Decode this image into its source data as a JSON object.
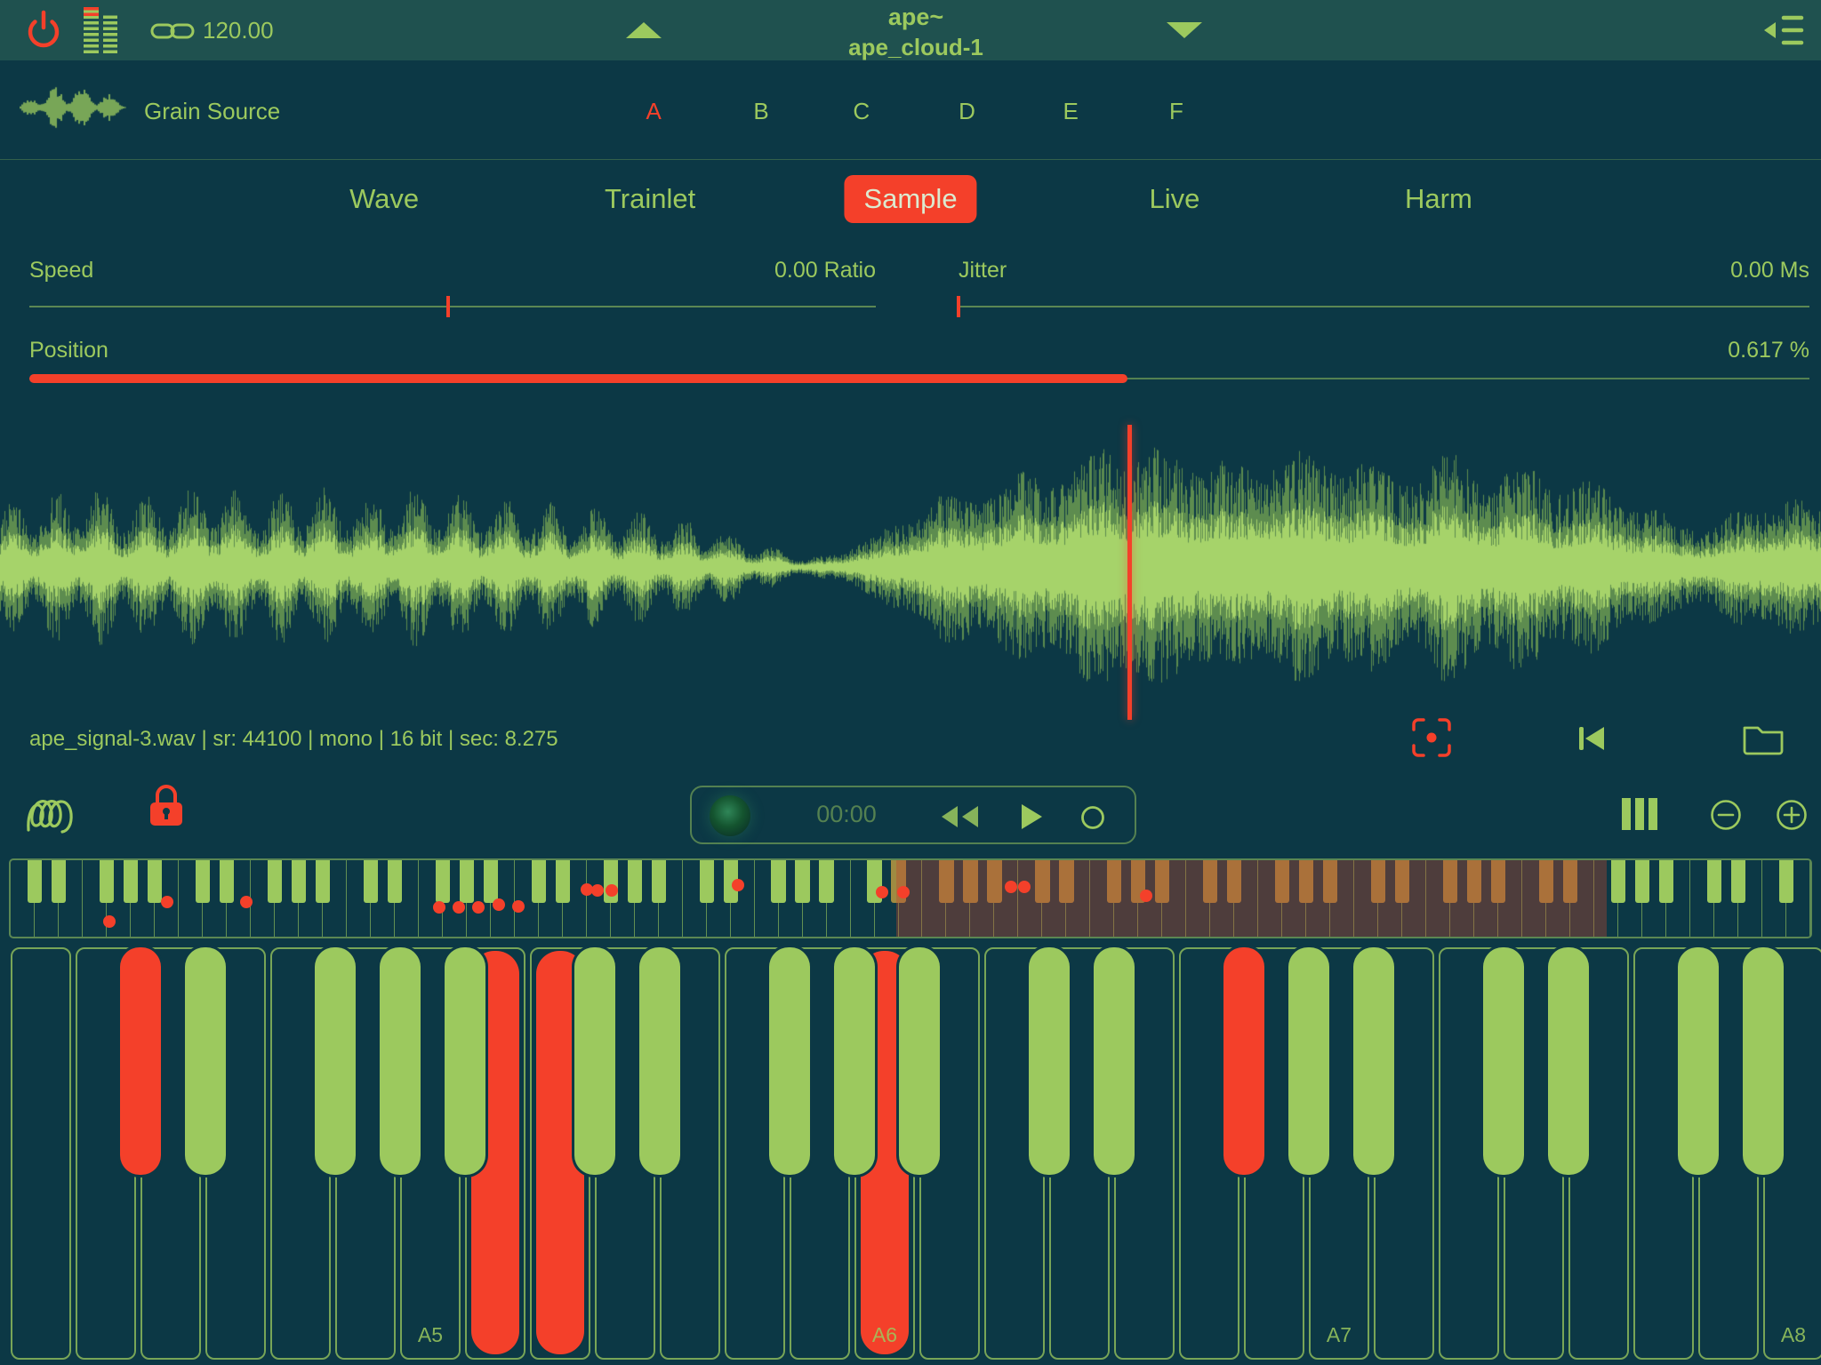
{
  "colors": {
    "bg": "#0c3845",
    "topbar_bg": "#1f514f",
    "green": "#9cc95e",
    "red": "#f4402a",
    "selection_overlay": "rgba(187,70,48,0.38)",
    "selection_black_key": "#a08b41",
    "tab_active_text": "#dcead0"
  },
  "topbar": {
    "tempo": "120.00",
    "title_line1": "ape~",
    "title_line2": "ape_cloud-1"
  },
  "grain_source": {
    "label": "Grain Source",
    "banks": [
      "A",
      "B",
      "C",
      "D",
      "E",
      "F"
    ],
    "active_bank": "A"
  },
  "tabs": {
    "items": [
      "Wave",
      "Trainlet",
      "Sample",
      "Live",
      "Harm"
    ],
    "active": "Sample"
  },
  "params": {
    "speed": {
      "label": "Speed",
      "value": "0.00 Ratio",
      "tick_pos": 0.495
    },
    "jitter": {
      "label": "Jitter",
      "value": "0.00 Ms",
      "tick_pos": 0
    },
    "position": {
      "label": "Position",
      "value": "0.617 %",
      "fill": 0.617
    }
  },
  "waveform": {
    "file_info": "ape_signal-3.wav | sr: 44100 | mono | 16 bit | sec: 8.275",
    "playhead": 0.62,
    "envelope": [
      [
        0,
        0.45
      ],
      [
        0.02,
        0.52
      ],
      [
        0.05,
        0.58
      ],
      [
        0.08,
        0.5
      ],
      [
        0.11,
        0.6
      ],
      [
        0.14,
        0.52
      ],
      [
        0.17,
        0.58
      ],
      [
        0.2,
        0.52
      ],
      [
        0.23,
        0.58
      ],
      [
        0.26,
        0.52
      ],
      [
        0.29,
        0.48
      ],
      [
        0.32,
        0.44
      ],
      [
        0.35,
        0.4
      ],
      [
        0.38,
        0.34
      ],
      [
        0.41,
        0.22
      ],
      [
        0.43,
        0.12
      ],
      [
        0.445,
        0.07
      ],
      [
        0.46,
        0.12
      ],
      [
        0.48,
        0.22
      ],
      [
        0.5,
        0.42
      ],
      [
        0.52,
        0.55
      ],
      [
        0.545,
        0.62
      ],
      [
        0.57,
        0.72
      ],
      [
        0.59,
        0.8
      ],
      [
        0.61,
        0.92
      ],
      [
        0.625,
        0.96
      ],
      [
        0.64,
        0.8
      ],
      [
        0.66,
        0.88
      ],
      [
        0.68,
        0.74
      ],
      [
        0.7,
        0.9
      ],
      [
        0.72,
        0.8
      ],
      [
        0.74,
        0.86
      ],
      [
        0.76,
        0.7
      ],
      [
        0.78,
        0.78
      ],
      [
        0.8,
        0.84
      ],
      [
        0.82,
        0.7
      ],
      [
        0.84,
        0.76
      ],
      [
        0.86,
        0.64
      ],
      [
        0.88,
        0.6
      ],
      [
        0.9,
        0.48
      ],
      [
        0.92,
        0.34
      ],
      [
        0.94,
        0.32
      ],
      [
        0.96,
        0.46
      ],
      [
        0.98,
        0.54
      ],
      [
        1,
        0.42
      ]
    ]
  },
  "transport": {
    "time": "00:00"
  },
  "mini_keyboard": {
    "white_keys": 75,
    "selection": [
      0.492,
      0.887
    ],
    "dots": [
      [
        0.055,
        0.8
      ],
      [
        0.087,
        0.55
      ],
      [
        0.131,
        0.55
      ],
      [
        0.238,
        0.62
      ],
      [
        0.249,
        0.62
      ],
      [
        0.26,
        0.62
      ],
      [
        0.271,
        0.58
      ],
      [
        0.282,
        0.6
      ],
      [
        0.32,
        0.38
      ],
      [
        0.326,
        0.4
      ],
      [
        0.334,
        0.4
      ],
      [
        0.404,
        0.33
      ],
      [
        0.484,
        0.42
      ],
      [
        0.496,
        0.42
      ],
      [
        0.556,
        0.35
      ],
      [
        0.563,
        0.35
      ],
      [
        0.631,
        0.47
      ]
    ]
  },
  "keyboard": {
    "first_white": "B4",
    "white_count": 28,
    "labels": [
      "A5",
      "A6",
      "A7",
      "A8"
    ],
    "pressed_white": [
      "B5",
      "C6",
      "A6"
    ],
    "pressed_black": [
      "C#5",
      "F#7"
    ]
  }
}
